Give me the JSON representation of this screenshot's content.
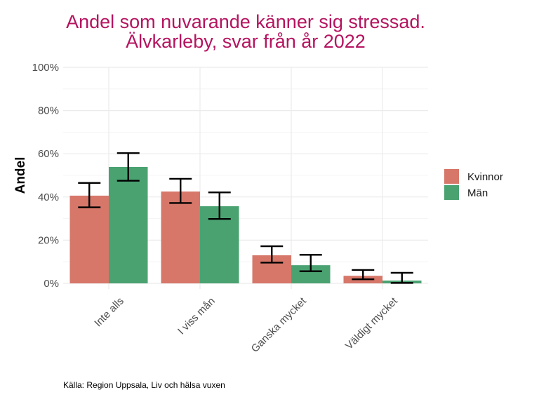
{
  "chart_data": {
    "type": "bar",
    "title": "Andel som nuvarande känner sig stressad.",
    "subtitle": "Älvkarleby, svar från år 2022",
    "xlabel": "",
    "ylabel": "Andel",
    "ylim": [
      0,
      100
    ],
    "yticks": [
      0,
      20,
      40,
      60,
      80,
      100
    ],
    "ytick_labels": [
      "0%",
      "20%",
      "40%",
      "60%",
      "80%",
      "100%"
    ],
    "grid": true,
    "categories": [
      "Inte alls",
      "I viss mån",
      "Ganska mycket",
      "Väldigt mycket"
    ],
    "series": [
      {
        "name": "Kvinnor",
        "color": "#d6776a",
        "values": [
          40.6,
          42.5,
          13.0,
          3.5
        ],
        "ci_low": [
          35.2,
          37.2,
          9.6,
          1.9
        ],
        "ci_high": [
          46.5,
          48.4,
          17.2,
          6.2
        ]
      },
      {
        "name": "Män",
        "color": "#4aa271",
        "values": [
          53.9,
          35.7,
          8.4,
          1.3
        ],
        "ci_low": [
          47.5,
          29.8,
          5.6,
          0.2
        ],
        "ci_high": [
          60.3,
          42.1,
          13.2,
          4.9
        ]
      }
    ],
    "legend_position": "right",
    "caption": "Källa: Region Uppsala, Liv och hälsa vuxen"
  }
}
